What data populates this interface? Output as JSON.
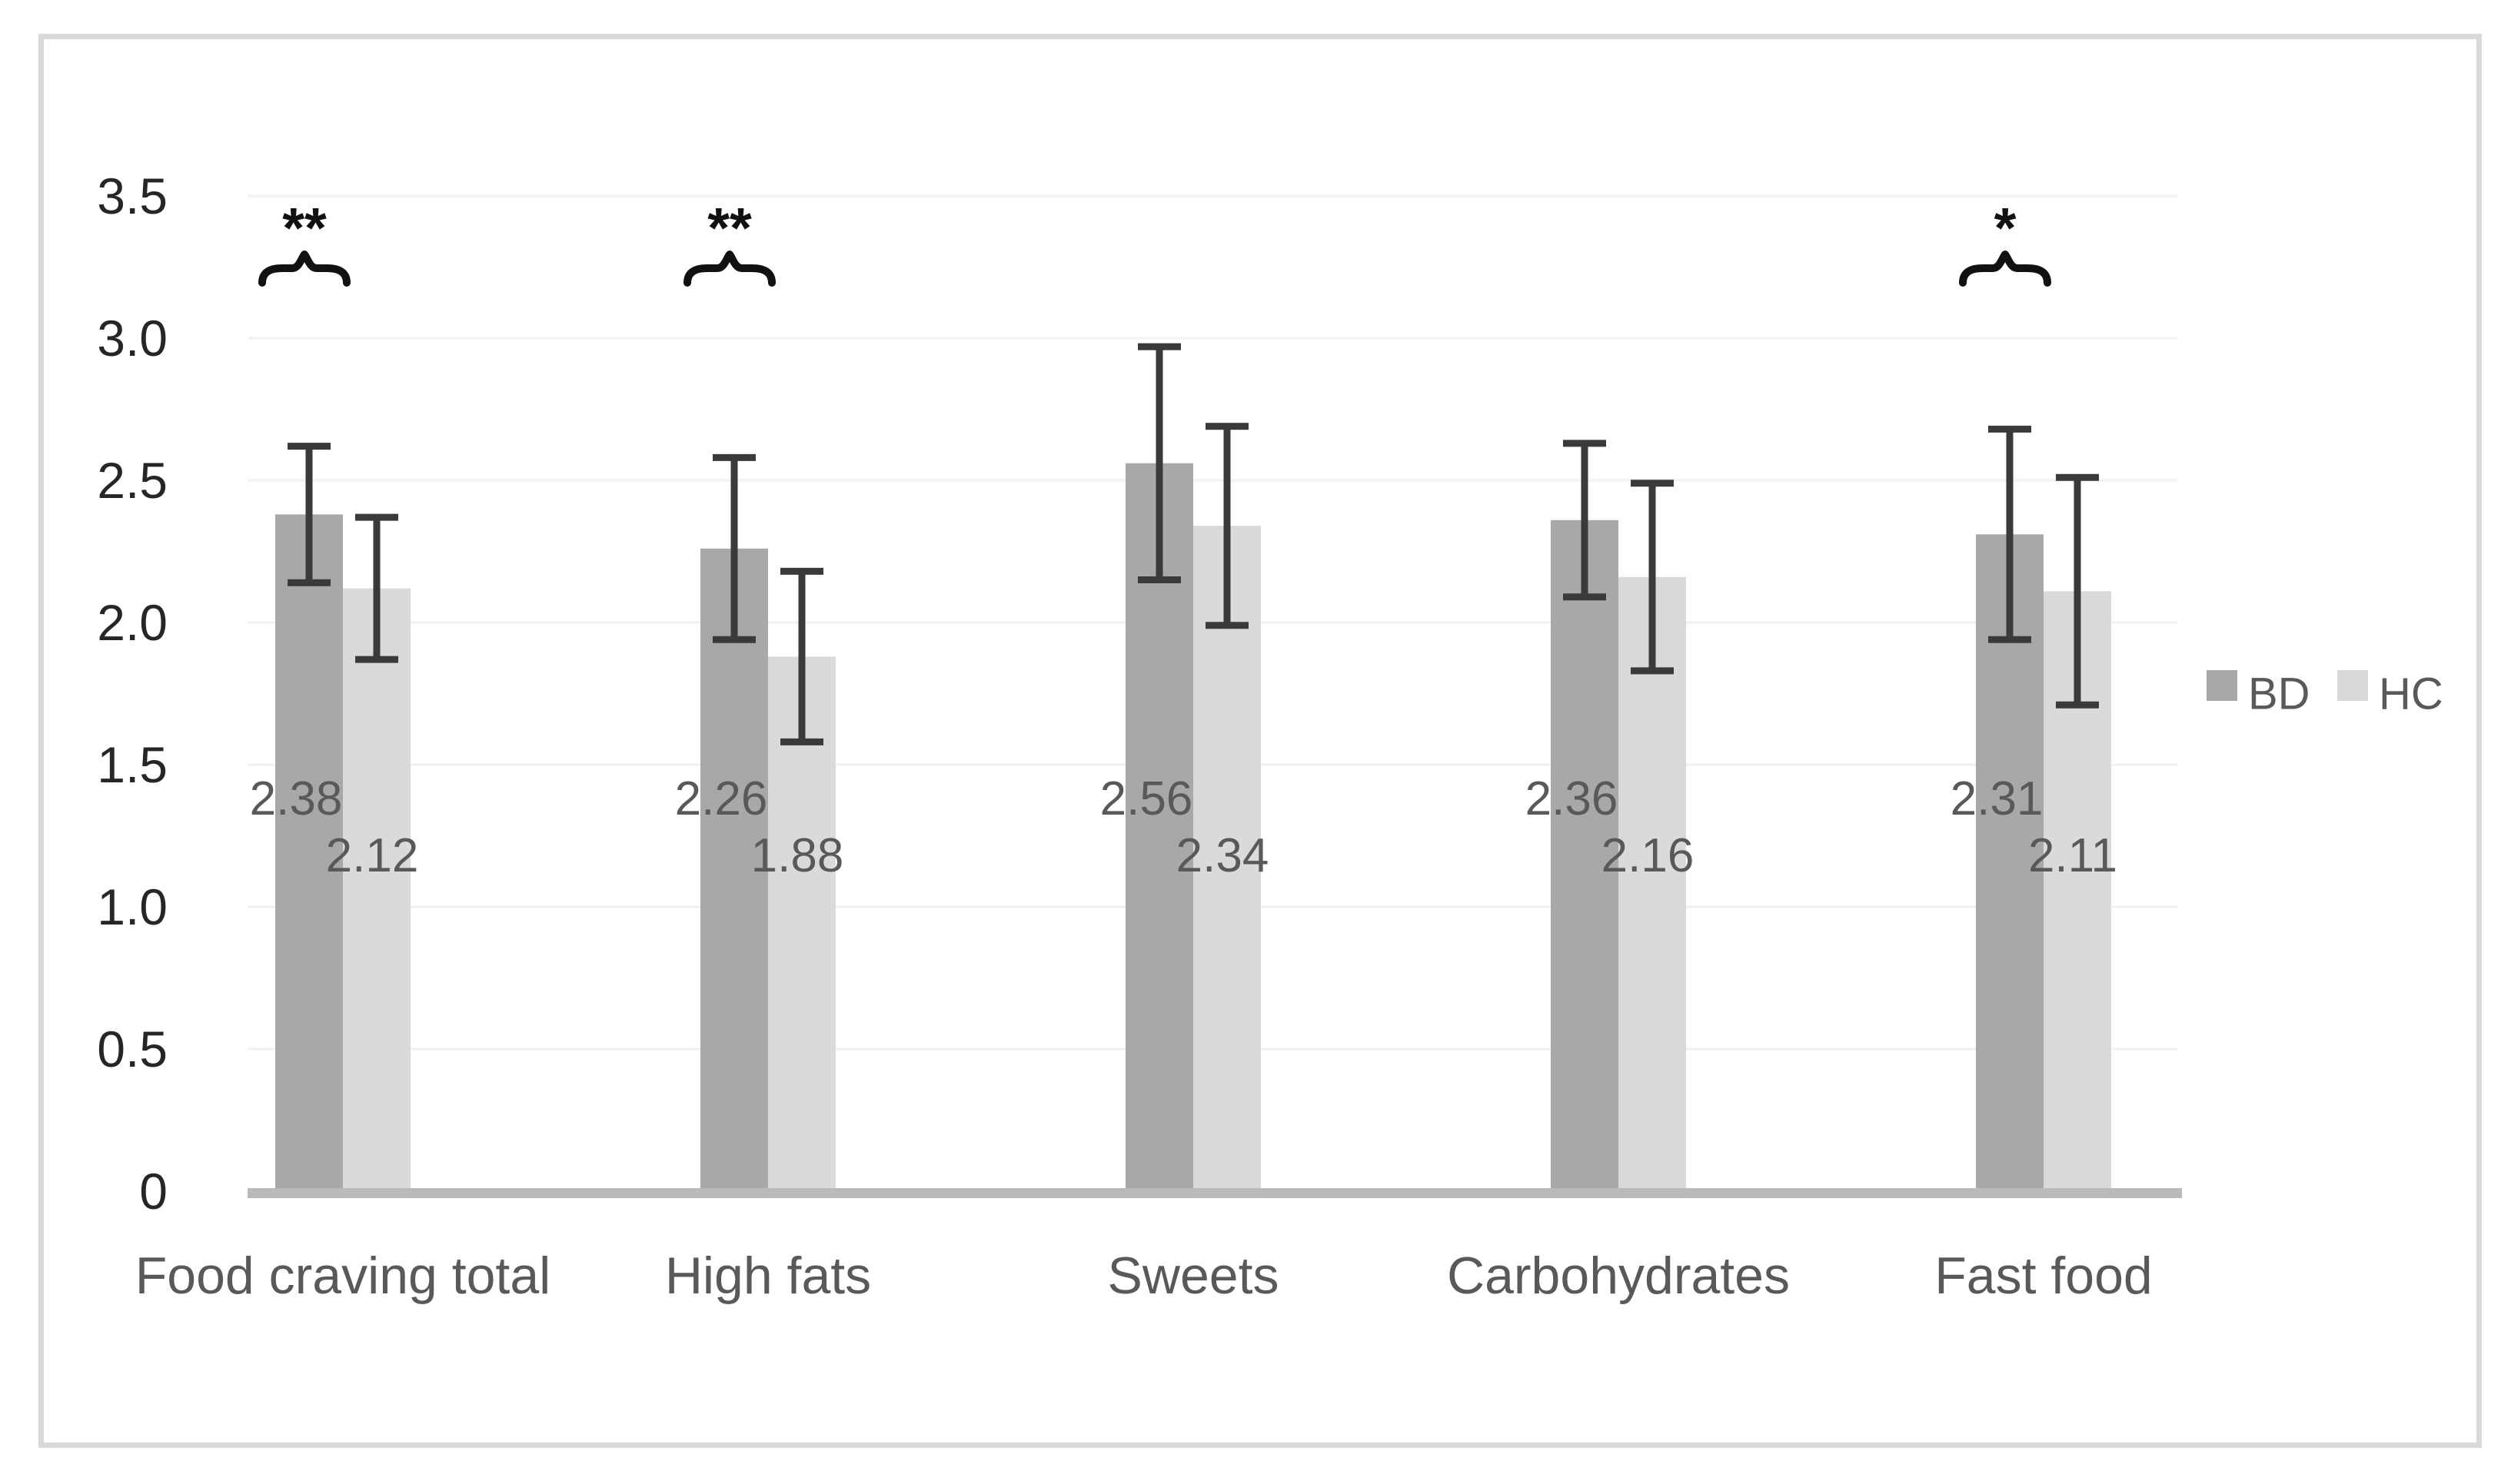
{
  "chart_data": {
    "type": "bar",
    "title": "",
    "xlabel": "",
    "ylabel": "",
    "categories": [
      "Food craving total",
      "High fats",
      "Sweets",
      "Carbohydrates",
      "Fast food"
    ],
    "series": [
      {
        "name": "BD",
        "color": "#a8a8a8",
        "values": [
          2.38,
          2.26,
          2.56,
          2.36,
          2.31
        ],
        "labels": [
          "2.38",
          "2.26",
          "2.56",
          "2.36",
          "2.31"
        ],
        "errors": [
          0.24,
          0.32,
          0.41,
          0.27,
          0.37
        ]
      },
      {
        "name": "HC",
        "color": "#dadada",
        "values": [
          2.12,
          1.88,
          2.34,
          2.16,
          2.11
        ],
        "labels": [
          "2.12",
          "1.88",
          "2.34",
          "2.16",
          "2.11"
        ],
        "errors": [
          0.25,
          0.3,
          0.35,
          0.33,
          0.4
        ]
      }
    ],
    "y_axis": {
      "min": 0,
      "max": 3.5,
      "tick_values": [
        3.5,
        3.0,
        2.5,
        2.0,
        1.5,
        1.0,
        0.5,
        0
      ],
      "tick_labels": [
        "3.5",
        "3.0",
        "2.5",
        "2.0",
        "1.5",
        "1.0",
        "0.5",
        "0"
      ],
      "grid": true
    },
    "annotations": [
      {
        "category_index": 0,
        "label": "**",
        "type": "brace"
      },
      {
        "category_index": 1,
        "label": "**",
        "type": "brace"
      },
      {
        "category_index": 4,
        "label": "*",
        "type": "brace"
      }
    ],
    "legend": {
      "position": "right",
      "entries": [
        "BD",
        "HC"
      ]
    },
    "colors": {
      "bd_bar": "#a8a8a8",
      "hc_bar": "#dadada",
      "error_bar": "#3a3a3a",
      "gridline": "#f1f1f1",
      "axis_line": "#bababa",
      "tick_text": "#262626",
      "category_text": "#595959",
      "data_label_text": "#595959",
      "legend_text": "#595959",
      "annotation": "#111111",
      "frame": "#d9d9d9"
    }
  }
}
